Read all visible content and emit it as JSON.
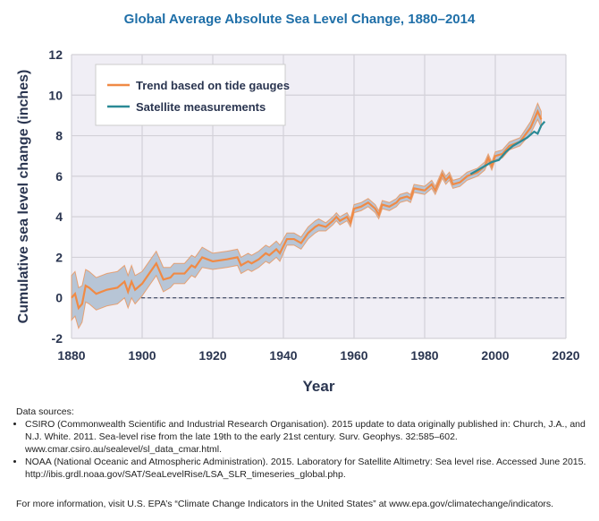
{
  "chart_data": {
    "type": "line",
    "title": "Global Average Absolute Sea Level Change, 1880–2014",
    "xlabel": "Year",
    "ylabel": "Cumulative sea level change (inches)",
    "xlim": [
      1880,
      2020
    ],
    "ylim": [
      -2,
      12
    ],
    "xticks": [
      1880,
      1900,
      1920,
      1940,
      1960,
      1980,
      2000,
      2020
    ],
    "yticks": [
      -2,
      0,
      2,
      4,
      6,
      8,
      10,
      12
    ],
    "grid": true,
    "legend_position": "top-left",
    "series": [
      {
        "name": "Trend based on tide gauges",
        "color": "#f08a45",
        "band_color": "#b7c5d6",
        "x": [
          1880,
          1881,
          1882,
          1883,
          1884,
          1885,
          1887,
          1890,
          1893,
          1895,
          1896,
          1897,
          1898,
          1900,
          1902,
          1904,
          1905,
          1906,
          1908,
          1909,
          1912,
          1914,
          1915,
          1917,
          1920,
          1924,
          1927,
          1928,
          1930,
          1931,
          1933,
          1935,
          1936,
          1938,
          1939,
          1941,
          1943,
          1945,
          1947,
          1949,
          1950,
          1952,
          1954,
          1955,
          1956,
          1958,
          1959,
          1960,
          1962,
          1964,
          1966,
          1967,
          1968,
          1970,
          1972,
          1973,
          1975,
          1976,
          1977,
          1980,
          1982,
          1983,
          1985,
          1986,
          1987,
          1988,
          1990,
          1992,
          1995,
          1997,
          1998,
          1999,
          2000,
          2002,
          2004,
          2007,
          2010,
          2012,
          2013
        ],
        "y": [
          0.0,
          0.2,
          -0.5,
          -0.3,
          0.6,
          0.5,
          0.2,
          0.4,
          0.5,
          0.8,
          0.3,
          0.8,
          0.4,
          0.7,
          1.2,
          1.7,
          1.3,
          0.9,
          1.0,
          1.2,
          1.2,
          1.6,
          1.5,
          2.0,
          1.8,
          1.9,
          2.0,
          1.6,
          1.8,
          1.7,
          1.9,
          2.2,
          2.1,
          2.4,
          2.2,
          2.9,
          2.9,
          2.7,
          3.2,
          3.5,
          3.6,
          3.5,
          3.8,
          4.0,
          3.8,
          4.0,
          3.7,
          4.4,
          4.5,
          4.7,
          4.4,
          4.1,
          4.6,
          4.5,
          4.7,
          4.9,
          5.0,
          4.9,
          5.4,
          5.3,
          5.6,
          5.3,
          6.1,
          5.8,
          6.0,
          5.6,
          5.7,
          6.0,
          6.2,
          6.5,
          6.9,
          6.5,
          7.0,
          7.1,
          7.5,
          7.7,
          8.4,
          9.2,
          8.8
        ],
        "uncertainty": [
          1.1,
          1.1,
          1.0,
          0.9,
          0.8,
          0.8,
          0.8,
          0.8,
          0.8,
          0.8,
          0.8,
          0.8,
          0.7,
          0.6,
          0.6,
          0.6,
          0.6,
          0.6,
          0.5,
          0.5,
          0.5,
          0.5,
          0.5,
          0.5,
          0.4,
          0.4,
          0.4,
          0.4,
          0.4,
          0.4,
          0.4,
          0.4,
          0.4,
          0.4,
          0.4,
          0.3,
          0.3,
          0.3,
          0.3,
          0.3,
          0.3,
          0.2,
          0.2,
          0.2,
          0.2,
          0.2,
          0.2,
          0.2,
          0.2,
          0.2,
          0.2,
          0.2,
          0.2,
          0.2,
          0.2,
          0.2,
          0.2,
          0.2,
          0.2,
          0.2,
          0.2,
          0.2,
          0.2,
          0.2,
          0.2,
          0.2,
          0.2,
          0.2,
          0.2,
          0.2,
          0.2,
          0.2,
          0.2,
          0.2,
          0.2,
          0.2,
          0.3,
          0.4,
          0.4
        ]
      },
      {
        "name": "Satellite measurements",
        "color": "#2a8a96",
        "x": [
          1993,
          1995,
          1997,
          1999,
          2001,
          2003,
          2005,
          2007,
          2009,
          2011,
          2012,
          2013,
          2014
        ],
        "y": [
          6.1,
          6.3,
          6.5,
          6.7,
          6.8,
          7.2,
          7.5,
          7.7,
          7.9,
          8.2,
          8.1,
          8.5,
          8.7
        ]
      }
    ]
  },
  "sources": {
    "heading": "Data sources:",
    "items": [
      "CSIRO (Commonwealth Scientific and Industrial Research Organisation). 2015 update to data originally published in: Church, J.A., and N.J. White. 2011. Sea-level rise from the late 19th to the early 21st century. Surv. Geophys. 32:585–602. www.cmar.csiro.au/sealevel/sl_data_cmar.html.",
      "NOAA (National Oceanic and Atmospheric Administration). 2015. Laboratory for Satellite Altimetry: Sea level rise. Accessed June 2015. http://ibis.grdl.noaa.gov/SAT/SeaLevelRise/LSA_SLR_timeseries_global.php."
    ]
  },
  "footer": "For more information, visit U.S. EPA’s “Climate Change Indicators in the United States” at www.epa.gov/climatechange/indicators."
}
